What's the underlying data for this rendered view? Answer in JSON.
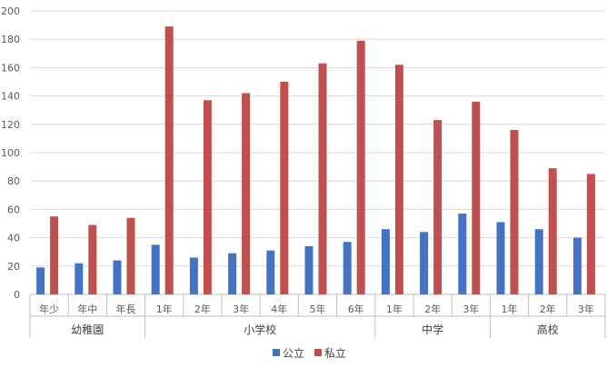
{
  "chart_data": {
    "type": "bar",
    "title": "",
    "xlabel": "",
    "ylabel": "",
    "ylim": [
      0,
      200
    ],
    "yticks": [
      0,
      20,
      40,
      60,
      80,
      100,
      120,
      140,
      160,
      180,
      200
    ],
    "grid": true,
    "legend_position": "bottom",
    "groups": [
      {
        "label": "幼稚園",
        "categories": [
          "年少",
          "年中",
          "年長"
        ]
      },
      {
        "label": "小学校",
        "categories": [
          "1年",
          "2年",
          "3年",
          "4年",
          "5年",
          "6年"
        ]
      },
      {
        "label": "中学",
        "categories": [
          "1年",
          "2年",
          "3年"
        ]
      },
      {
        "label": "高校",
        "categories": [
          "1年",
          "2年",
          "3年"
        ]
      }
    ],
    "series": [
      {
        "name": "公立",
        "color": "#4472C4",
        "values": [
          19,
          22,
          24,
          35,
          26,
          29,
          31,
          34,
          37,
          46,
          44,
          57,
          51,
          46,
          40
        ]
      },
      {
        "name": "私立",
        "color": "#C0504D",
        "values": [
          55,
          49,
          54,
          189,
          137,
          142,
          150,
          163,
          179,
          162,
          123,
          136,
          116,
          89,
          85
        ]
      }
    ]
  }
}
